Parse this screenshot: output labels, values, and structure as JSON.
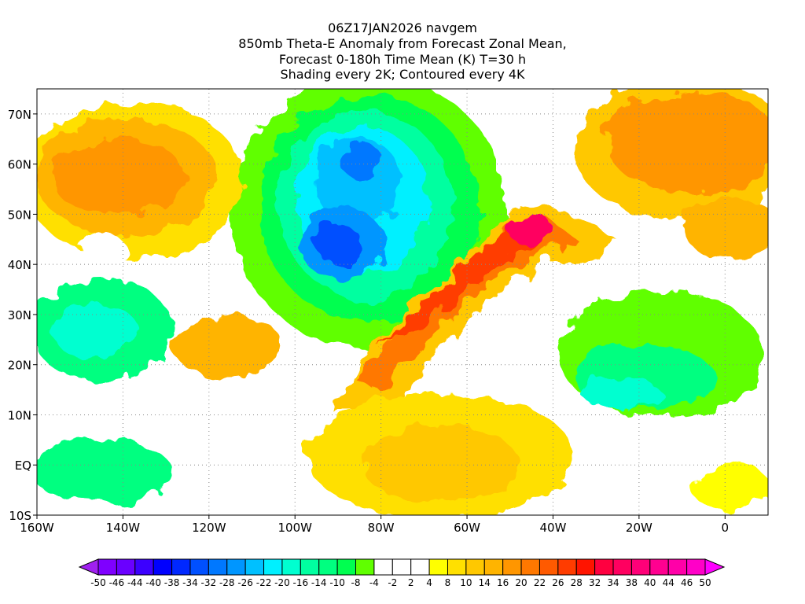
{
  "title_lines": [
    "06Z17JAN2026 navgem",
    "850mb Theta-E Anomaly from Forecast Zonal Mean,",
    "Forecast 0-180h Time Mean (K) T=30 h",
    "Shading every 2K; Contoured every 4K"
  ],
  "chart_data": {
    "type": "heatmap",
    "variable": "850mb Theta-E Anomaly (K)",
    "lon_range": [
      -160,
      10
    ],
    "lat_range": [
      -10,
      75
    ],
    "x_ticks": [
      {
        "value": -160,
        "label": "160W"
      },
      {
        "value": -140,
        "label": "140W"
      },
      {
        "value": -120,
        "label": "120W"
      },
      {
        "value": -100,
        "label": "100W"
      },
      {
        "value": -80,
        "label": "80W"
      },
      {
        "value": -60,
        "label": "60W"
      },
      {
        "value": -40,
        "label": "40W"
      },
      {
        "value": -20,
        "label": "20W"
      },
      {
        "value": 0,
        "label": "0"
      }
    ],
    "y_ticks": [
      {
        "value": 70,
        "label": "70N"
      },
      {
        "value": 60,
        "label": "60N"
      },
      {
        "value": 50,
        "label": "50N"
      },
      {
        "value": 40,
        "label": "40N"
      },
      {
        "value": 30,
        "label": "30N"
      },
      {
        "value": 20,
        "label": "20N"
      },
      {
        "value": 10,
        "label": "10N"
      },
      {
        "value": 0,
        "label": "EQ"
      },
      {
        "value": -10,
        "label": "10S"
      }
    ],
    "grid": true,
    "colorbar": {
      "labels": [
        "-50",
        "-46",
        "-44",
        "-40",
        "-38",
        "-34",
        "-32",
        "-28",
        "-26",
        "-22",
        "-20",
        "-16",
        "-14",
        "-10",
        "-8",
        "-4",
        "-2",
        "2",
        "4",
        "8",
        "10",
        "14",
        "16",
        "20",
        "22",
        "26",
        "28",
        "32",
        "34",
        "38",
        "40",
        "44",
        "46",
        "50"
      ],
      "colors": [
        "#7f00ff",
        "#6a00ff",
        "#3c00ff",
        "#0000ff",
        "#0028ff",
        "#0050ff",
        "#0078ff",
        "#0096ff",
        "#00c0ff",
        "#00f0ff",
        "#00ffd0",
        "#00ffa0",
        "#00ff80",
        "#00ff50",
        "#60ff00",
        "#ffffff",
        "#ffffff",
        "#ffffff",
        "#ffff00",
        "#ffe000",
        "#ffc800",
        "#ffb400",
        "#ff9600",
        "#ff7800",
        "#ff5a00",
        "#ff3c00",
        "#ff1400",
        "#ff0040",
        "#ff0060",
        "#ff0078",
        "#ff0090",
        "#ff00a8",
        "#ff00c8"
      ],
      "under_color": "#a020f0",
      "over_color": "#ff00ff"
    },
    "features": [
      {
        "name": "cold-anomaly-north-america",
        "min_k": -36
      },
      {
        "name": "warm-plume-western-atlantic",
        "max_k": 46
      },
      {
        "name": "warm-anomaly-alaska-gulf",
        "max_k": 22
      },
      {
        "name": "warm-anomaly-europe",
        "max_k": 22
      }
    ]
  }
}
